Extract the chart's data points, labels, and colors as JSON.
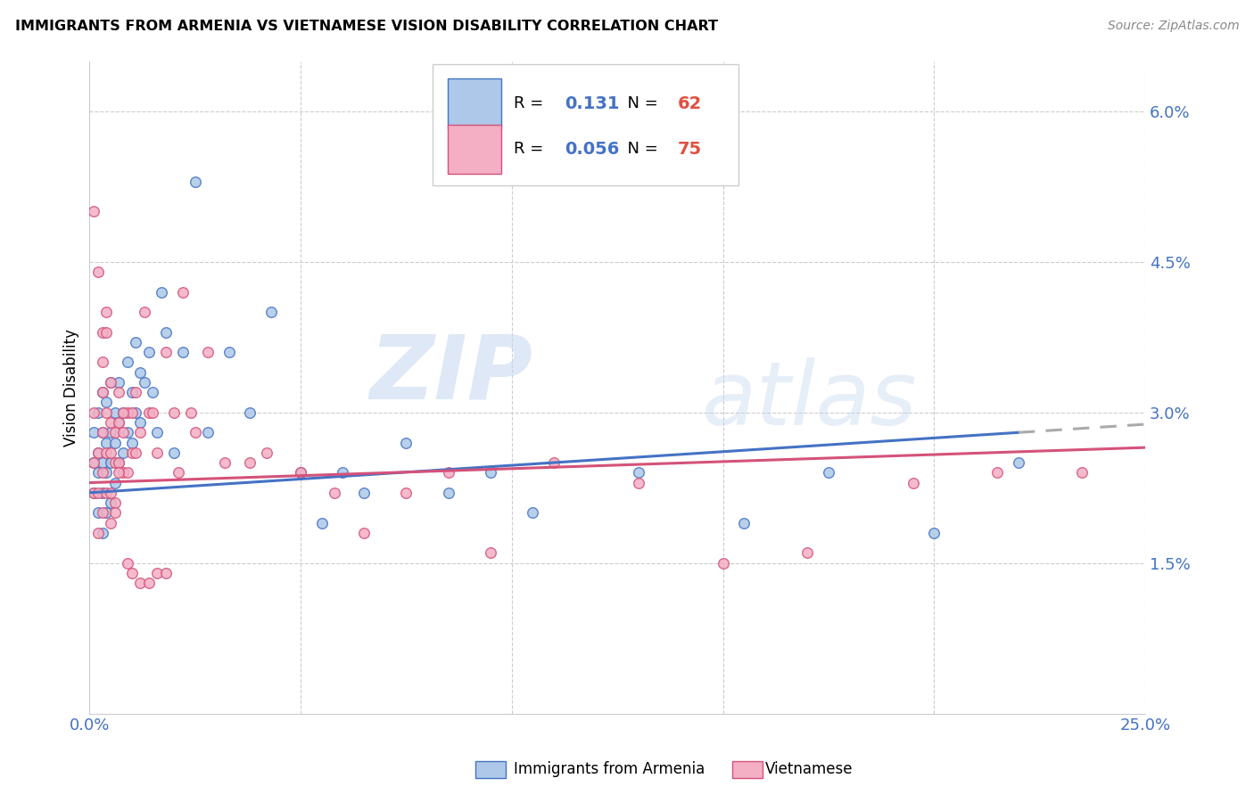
{
  "title": "IMMIGRANTS FROM ARMENIA VS VIETNAMESE VISION DISABILITY CORRELATION CHART",
  "source": "Source: ZipAtlas.com",
  "ylabel": "Vision Disability",
  "right_yticks": [
    "6.0%",
    "4.5%",
    "3.0%",
    "1.5%"
  ],
  "right_ytick_vals": [
    0.06,
    0.045,
    0.03,
    0.015
  ],
  "legend1_r": "0.131",
  "legend1_n": "62",
  "legend2_r": "0.056",
  "legend2_n": "75",
  "color_armenia": "#adc8e8",
  "color_armenian_line": "#4472c4",
  "color_vietnamese": "#f4afc4",
  "color_vietnamese_line": "#d4527a",
  "color_dashed": "#aaaaaa",
  "armenia_x": [
    0.001,
    0.001,
    0.001,
    0.002,
    0.002,
    0.002,
    0.002,
    0.003,
    0.003,
    0.003,
    0.003,
    0.003,
    0.004,
    0.004,
    0.004,
    0.004,
    0.005,
    0.005,
    0.005,
    0.005,
    0.006,
    0.006,
    0.006,
    0.007,
    0.007,
    0.007,
    0.008,
    0.008,
    0.009,
    0.009,
    0.01,
    0.01,
    0.011,
    0.011,
    0.012,
    0.012,
    0.013,
    0.014,
    0.015,
    0.016,
    0.017,
    0.018,
    0.02,
    0.022,
    0.025,
    0.028,
    0.033,
    0.038,
    0.043,
    0.05,
    0.055,
    0.06,
    0.065,
    0.075,
    0.085,
    0.095,
    0.105,
    0.13,
    0.155,
    0.175,
    0.2,
    0.22
  ],
  "armenia_y": [
    0.022,
    0.025,
    0.028,
    0.02,
    0.024,
    0.026,
    0.03,
    0.018,
    0.022,
    0.025,
    0.028,
    0.032,
    0.02,
    0.024,
    0.027,
    0.031,
    0.021,
    0.025,
    0.028,
    0.033,
    0.023,
    0.027,
    0.03,
    0.025,
    0.029,
    0.033,
    0.026,
    0.03,
    0.028,
    0.035,
    0.027,
    0.032,
    0.03,
    0.037,
    0.029,
    0.034,
    0.033,
    0.036,
    0.032,
    0.028,
    0.042,
    0.038,
    0.026,
    0.036,
    0.053,
    0.028,
    0.036,
    0.03,
    0.04,
    0.024,
    0.019,
    0.024,
    0.022,
    0.027,
    0.022,
    0.024,
    0.02,
    0.024,
    0.019,
    0.024,
    0.018,
    0.025
  ],
  "vietnamese_x": [
    0.001,
    0.001,
    0.001,
    0.001,
    0.002,
    0.002,
    0.002,
    0.002,
    0.003,
    0.003,
    0.003,
    0.003,
    0.003,
    0.004,
    0.004,
    0.004,
    0.004,
    0.005,
    0.005,
    0.005,
    0.005,
    0.006,
    0.006,
    0.006,
    0.007,
    0.007,
    0.007,
    0.008,
    0.008,
    0.009,
    0.009,
    0.01,
    0.01,
    0.011,
    0.011,
    0.012,
    0.013,
    0.014,
    0.015,
    0.016,
    0.018,
    0.02,
    0.022,
    0.025,
    0.028,
    0.032,
    0.038,
    0.042,
    0.05,
    0.058,
    0.065,
    0.075,
    0.085,
    0.095,
    0.11,
    0.13,
    0.15,
    0.17,
    0.195,
    0.215,
    0.235,
    0.003,
    0.004,
    0.005,
    0.006,
    0.007,
    0.008,
    0.009,
    0.01,
    0.012,
    0.014,
    0.016,
    0.018,
    0.021,
    0.024
  ],
  "vietnamese_y": [
    0.022,
    0.025,
    0.03,
    0.05,
    0.018,
    0.022,
    0.026,
    0.044,
    0.02,
    0.024,
    0.028,
    0.032,
    0.038,
    0.022,
    0.026,
    0.03,
    0.04,
    0.022,
    0.026,
    0.029,
    0.033,
    0.021,
    0.025,
    0.028,
    0.025,
    0.029,
    0.032,
    0.024,
    0.028,
    0.024,
    0.03,
    0.026,
    0.03,
    0.026,
    0.032,
    0.028,
    0.04,
    0.03,
    0.03,
    0.026,
    0.036,
    0.03,
    0.042,
    0.028,
    0.036,
    0.025,
    0.025,
    0.026,
    0.024,
    0.022,
    0.018,
    0.022,
    0.024,
    0.016,
    0.025,
    0.023,
    0.015,
    0.016,
    0.023,
    0.024,
    0.024,
    0.035,
    0.038,
    0.019,
    0.02,
    0.024,
    0.03,
    0.015,
    0.014,
    0.013,
    0.013,
    0.014,
    0.014,
    0.024,
    0.03
  ],
  "xlim": [
    0.0,
    0.25
  ],
  "ylim": [
    0.0,
    0.065
  ],
  "watermark_zip": "ZIP",
  "watermark_atlas": "atlas",
  "marker_size": 70,
  "arm_line_solid_end": 0.22,
  "arm_line_start": 0.0,
  "line_start_y_arm": 0.022,
  "line_end_y_arm": 0.028,
  "line_end_y_arm_dash": 0.03,
  "line_start_y_viet": 0.023,
  "line_end_y_viet": 0.0265
}
